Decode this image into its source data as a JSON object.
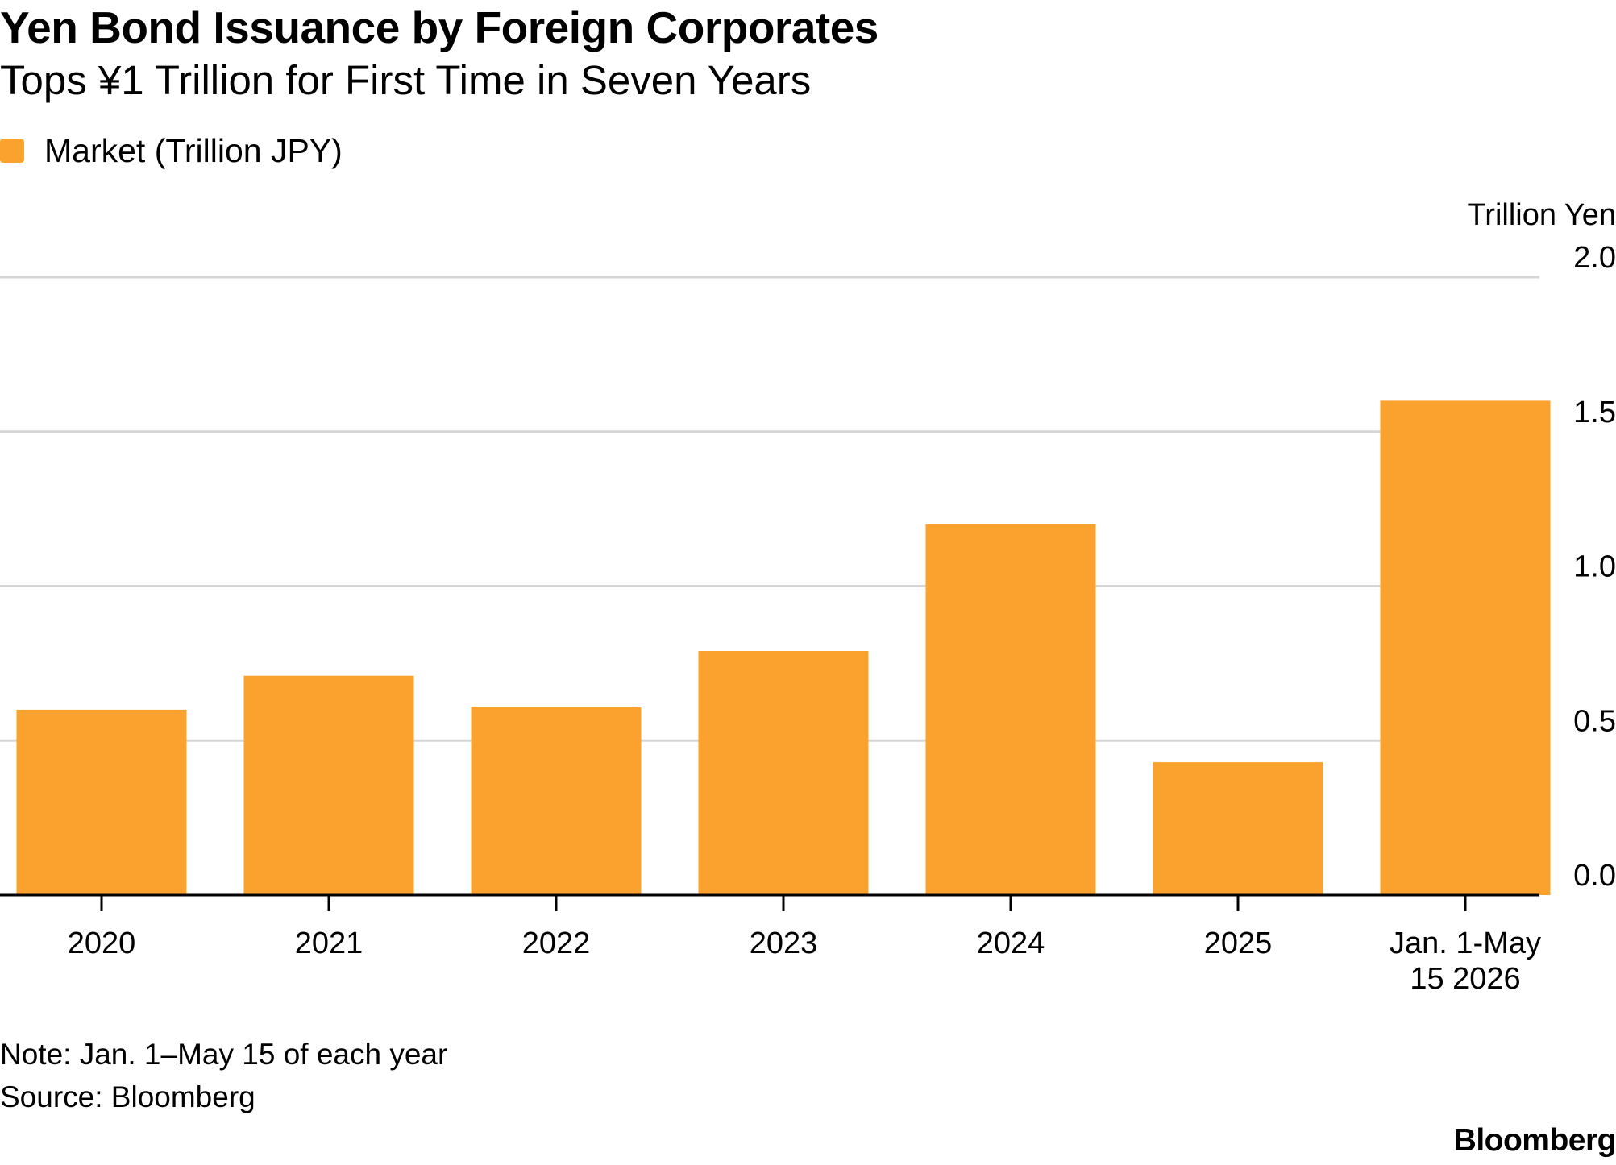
{
  "header": {
    "title": "Yen Bond Issuance by Foreign Corporates",
    "subtitle": "Tops ¥1 Trillion for First Time in Seven Years"
  },
  "footer": {
    "note": "Note: Jan. 1–May 15 of each year",
    "source": "Source: Bloomberg",
    "brand": "Bloomberg"
  },
  "colors": {
    "bar": "#FBA12D",
    "gridline": "#d6d6d6",
    "axis": "#000000"
  },
  "chart_data": {
    "type": "bar",
    "title": "Yen Bond Issuance by Foreign Corporates",
    "subtitle": "Tops ¥1 Trillion for First Time in Seven Years",
    "categories": [
      "2020",
      "2021",
      "2022",
      "2023",
      "2024",
      "2025",
      "Jan. 1-May 15 2026"
    ],
    "category_labels": [
      [
        "2020"
      ],
      [
        "2021"
      ],
      [
        "2022"
      ],
      [
        "2023"
      ],
      [
        "2024"
      ],
      [
        "2025"
      ],
      [
        "Jan. 1-May",
        "15 2026"
      ]
    ],
    "series": [
      {
        "name": "Market (Trillion JPY)",
        "color": "#FBA12D",
        "values": [
          0.6,
          0.71,
          0.61,
          0.79,
          1.2,
          0.43,
          1.6
        ]
      }
    ],
    "ylabel": "Trillion Yen",
    "ylim": [
      0,
      2.0
    ],
    "yticks": [
      0.0,
      0.5,
      1.0,
      1.5,
      2.0
    ],
    "ytick_labels": [
      "0.0",
      "0.5",
      "1.0",
      "1.5",
      "2.0"
    ],
    "y_axis_side": "right",
    "grid": true,
    "legend_position": "top-left"
  }
}
